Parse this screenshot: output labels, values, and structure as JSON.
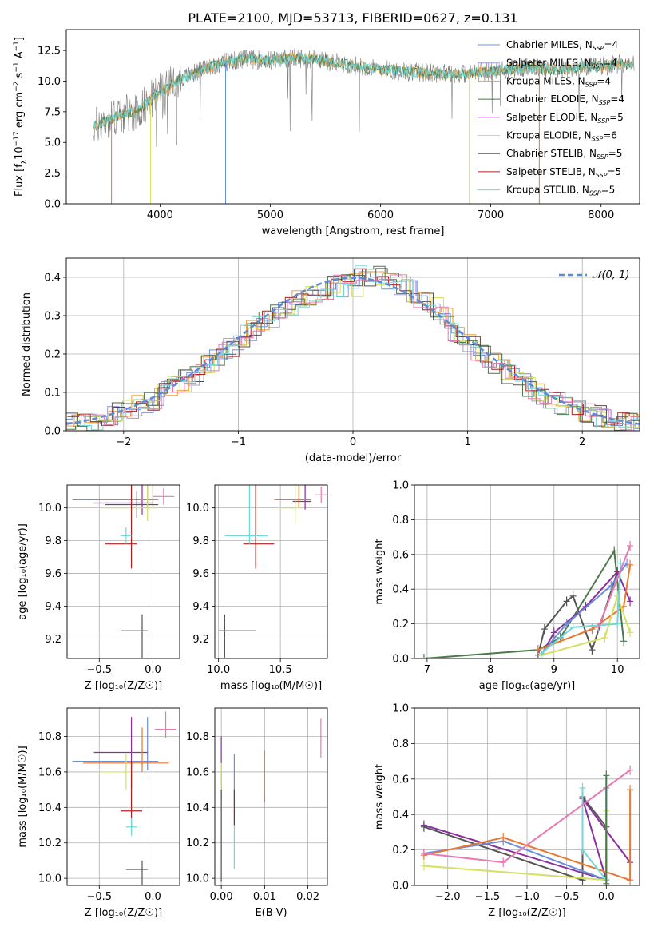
{
  "figure_title": "PLATE=2100, MJD=53713, FIBERID=0627, z=0.131",
  "legend": {
    "spectrum": [
      {
        "label": "Chabrier MILES, N",
        "sub": "SSP",
        "tail": "=4",
        "color": "#6a8fd8"
      },
      {
        "label": "Salpeter MILES, N",
        "sub": "SSP",
        "tail": "=4",
        "color": "#9b9bd8"
      },
      {
        "label": "Kroupa MILES, N",
        "sub": "SSP",
        "tail": "=4",
        "color": "#f0a03a"
      },
      {
        "label": "Chabrier ELODIE, N",
        "sub": "SSP",
        "tail": "=4",
        "color": "#4a7a4a"
      },
      {
        "label": "Salpeter ELODIE, N",
        "sub": "SSP",
        "tail": "=5",
        "color": "#8a2ea0"
      },
      {
        "label": "Kroupa ELODIE, N",
        "sub": "SSP",
        "tail": "=6",
        "color": "#d4e060"
      },
      {
        "label": "Chabrier STELIB, N",
        "sub": "SSP",
        "tail": "=5",
        "color": "#555555"
      },
      {
        "label": "Salpeter STELIB, N",
        "sub": "SSP",
        "tail": "=5",
        "color": "#b02020"
      },
      {
        "label": "Kroupa STELIB, N",
        "sub": "SSP",
        "tail": "=5",
        "color": "#70d8d8"
      }
    ],
    "histogram": "𝒩(0, 1)"
  },
  "colors": {
    "Chabrier MILES": "#6a8fd8",
    "Salpeter MILES": "#9b9bd8",
    "Kroupa MILES": "#f0a03a",
    "Chabrier ELODIE": "#4a7a4a",
    "Salpeter ELODIE": "#8a2ea0",
    "Kroupa ELODIE": "#d4e060",
    "Chabrier STELIB": "#555555",
    "Salpeter STELIB": "#b02020",
    "Kroupa STELIB": "#70d8d8",
    "extra_pink": "#e878b0",
    "extra_orange": "#e87830",
    "gaussian": "#5b8ad6",
    "grid": "#b0b0b0"
  },
  "chart_data": [
    {
      "id": "spectrum",
      "type": "line",
      "xlabel": "wavelength [Angstrom, rest frame]",
      "ylabel": "Flux [f_λ 10^-17 erg cm^-2 s^-1 A^-1]",
      "xlim": [
        3150,
        8350
      ],
      "ylim": [
        0,
        14.2
      ],
      "xticks": [
        4000,
        5000,
        6000,
        7000,
        8000
      ],
      "yticks": [
        0.0,
        2.5,
        5.0,
        7.5,
        10.0,
        12.5
      ],
      "continuum": [
        [
          3400,
          6.3
        ],
        [
          3600,
          7.1
        ],
        [
          3800,
          7.6
        ],
        [
          4000,
          9.1
        ],
        [
          4200,
          10.2
        ],
        [
          4400,
          11.0
        ],
        [
          4600,
          11.6
        ],
        [
          4800,
          11.8
        ],
        [
          5000,
          11.7
        ],
        [
          5200,
          11.9
        ],
        [
          5400,
          11.8
        ],
        [
          5600,
          11.5
        ],
        [
          5800,
          11.2
        ],
        [
          6000,
          11.0
        ],
        [
          6200,
          10.8
        ],
        [
          6400,
          10.7
        ],
        [
          6600,
          10.6
        ],
        [
          6800,
          10.6
        ],
        [
          7000,
          10.8
        ],
        [
          7200,
          11.0
        ],
        [
          7400,
          11.1
        ],
        [
          7600,
          10.9
        ],
        [
          7800,
          11.1
        ],
        [
          8000,
          11.2
        ],
        [
          8300,
          11.5
        ]
      ],
      "drops": [
        {
          "x": 3560,
          "color": "#e87830"
        },
        {
          "x": 3915,
          "color": "#d4e060"
        },
        {
          "x": 4595,
          "color": "#6a8fd8"
        },
        {
          "x": 6805,
          "color": "#d4e060"
        },
        {
          "x": 7440,
          "color": "#e87830"
        }
      ]
    },
    {
      "id": "residuals",
      "type": "histogram",
      "xlabel": "(data-model)/error",
      "ylabel": "Normed distribution",
      "xlim": [
        -2.5,
        2.5
      ],
      "ylim": [
        0,
        0.45
      ],
      "xticks": [
        -2,
        -1,
        0,
        1,
        2
      ],
      "yticks": [
        0.0,
        0.1,
        0.2,
        0.3,
        0.4
      ],
      "bin_width": 0.1,
      "gaussian": {
        "mu": 0,
        "sigma": 1
      }
    },
    {
      "id": "age_vs_Z",
      "type": "scatter",
      "xlabel": "Z [log₁₀(Z/Z☉)]",
      "ylabel": "age  [log₁₀(age/yr)]",
      "xlim": [
        -0.8,
        0.25
      ],
      "ylim": [
        9.08,
        10.14
      ],
      "xticks": [
        -0.5,
        0.0
      ],
      "yticks": [
        9.2,
        9.4,
        9.6,
        9.8,
        10.0
      ],
      "points": [
        {
          "x": -0.05,
          "y": 10.05,
          "xerr": [
            0.7,
            0.1
          ],
          "yerr": [
            0.25,
            0.05
          ],
          "color": "#6a8fd8"
        },
        {
          "x": -0.1,
          "y": 10.03,
          "xerr": [
            0.45,
            0.1
          ],
          "yerr": [
            0.2,
            0.07
          ],
          "color": "#8a2ea0"
        },
        {
          "x": 0.0,
          "y": 10.05,
          "xerr": [
            0.5,
            0.05
          ],
          "yerr": [
            0.25,
            0.05
          ],
          "color": "#e87830"
        },
        {
          "x": -0.15,
          "y": 10.02,
          "xerr": [
            0.3,
            0.2
          ],
          "yerr": [
            0.08,
            0.08
          ],
          "color": "#555555"
        },
        {
          "x": -0.05,
          "y": 10.0,
          "xerr": [
            0.45,
            0.1
          ],
          "yerr": [
            0.2,
            0.08
          ],
          "color": "#d4e060"
        },
        {
          "x": 0.1,
          "y": 10.07,
          "xerr": [
            0.1,
            0.1
          ],
          "yerr": [
            0.05,
            0.05
          ],
          "color": "#e878b0"
        },
        {
          "x": -0.2,
          "y": 9.78,
          "xerr": [
            0.25,
            0.05
          ],
          "yerr": [
            0.65,
            0.15
          ],
          "color": "#b02020"
        },
        {
          "x": -0.25,
          "y": 9.83,
          "xerr": [
            0.05,
            0.05
          ],
          "yerr": [
            0.05,
            0.05
          ],
          "color": "#70d8d8"
        },
        {
          "x": -0.1,
          "y": 9.25,
          "xerr": [
            0.2,
            0.05
          ],
          "yerr": [
            0.1,
            0.75
          ],
          "color": "#555555"
        }
      ]
    },
    {
      "id": "age_vs_mass",
      "type": "scatter",
      "xlabel": "mass [log₁₀(M/M☉)]",
      "ylabel": "",
      "xlim": [
        9.97,
        10.88
      ],
      "ylim": [
        9.08,
        10.14
      ],
      "xticks": [
        10.0,
        10.5
      ],
      "yticks": [
        9.2,
        9.4,
        9.6,
        9.8,
        10.0
      ],
      "points": [
        {
          "x": 10.65,
          "y": 10.05,
          "xerr": [
            0.15,
            0.05
          ],
          "yerr": [
            0.2,
            0.05
          ],
          "color": "#6a8fd8"
        },
        {
          "x": 10.7,
          "y": 10.04,
          "xerr": [
            0.1,
            0.05
          ],
          "yerr": [
            0.2,
            0.05
          ],
          "color": "#8a2ea0"
        },
        {
          "x": 10.65,
          "y": 10.05,
          "xerr": [
            0.2,
            0.1
          ],
          "yerr": [
            0.25,
            0.05
          ],
          "color": "#e87830"
        },
        {
          "x": 10.62,
          "y": 10.0,
          "xerr": [
            0.15,
            0.05
          ],
          "yerr": [
            0.13,
            0.1
          ],
          "color": "#d4e060"
        },
        {
          "x": 10.83,
          "y": 10.08,
          "xerr": [
            0.05,
            0.05
          ],
          "yerr": [
            0.05,
            0.05
          ],
          "color": "#e878b0"
        },
        {
          "x": 10.3,
          "y": 9.78,
          "xerr": [
            0.1,
            0.15
          ],
          "yerr": [
            0.65,
            0.15
          ],
          "color": "#b02020"
        },
        {
          "x": 10.25,
          "y": 9.83,
          "xerr": [
            0.2,
            0.15
          ],
          "yerr": [
            0.6,
            0.05
          ],
          "color": "#70d8d8"
        },
        {
          "x": 10.05,
          "y": 9.25,
          "xerr": [
            0.05,
            0.25
          ],
          "yerr": [
            0.1,
            0.82
          ],
          "color": "#555555"
        }
      ]
    },
    {
      "id": "massweight_vs_age",
      "type": "line",
      "xlabel": "age  [log₁₀(age/yr)]",
      "ylabel": "mass weight",
      "xlim": [
        6.8,
        10.35
      ],
      "ylim": [
        0,
        1.0
      ],
      "xticks": [
        7,
        8,
        9,
        10
      ],
      "yticks": [
        0.0,
        0.2,
        0.4,
        0.6,
        0.8,
        1.0
      ],
      "series": [
        {
          "color": "#4a7a4a",
          "x": [
            6.95,
            8.75,
            9.1,
            9.95,
            10.1
          ],
          "y": [
            0.0,
            0.05,
            0.12,
            0.62,
            0.1
          ]
        },
        {
          "color": "#555555",
          "x": [
            8.75,
            8.85,
            9.2,
            9.3,
            9.6,
            10.0
          ],
          "y": [
            0.02,
            0.17,
            0.33,
            0.36,
            0.05,
            0.5
          ]
        },
        {
          "color": "#8a2ea0",
          "x": [
            8.8,
            9.0,
            9.5,
            10.0,
            10.2
          ],
          "y": [
            0.02,
            0.15,
            0.3,
            0.5,
            0.33
          ]
        },
        {
          "color": "#6a8fd8",
          "x": [
            8.8,
            9.2,
            9.9,
            10.15
          ],
          "y": [
            0.03,
            0.2,
            0.42,
            0.55
          ]
        },
        {
          "color": "#e87830",
          "x": [
            8.75,
            9.6,
            10.1,
            10.2
          ],
          "y": [
            0.05,
            0.17,
            0.3,
            0.54
          ]
        },
        {
          "color": "#d4e060",
          "x": [
            8.8,
            9.8,
            10.0,
            10.2
          ],
          "y": [
            0.02,
            0.12,
            0.36,
            0.15
          ]
        },
        {
          "color": "#70d8d8",
          "x": [
            8.8,
            9.3,
            10.0,
            10.05
          ],
          "y": [
            0.03,
            0.18,
            0.2,
            0.55
          ]
        },
        {
          "color": "#e878b0",
          "x": [
            9.7,
            10.2
          ],
          "y": [
            0.18,
            0.65
          ]
        }
      ]
    },
    {
      "id": "mass_vs_Z",
      "type": "scatter",
      "xlabel": "Z [log₁₀(Z/Z☉)]",
      "ylabel": "mass [log₁₀(M/M☉)]",
      "xlim": [
        -0.8,
        0.25
      ],
      "ylim": [
        9.96,
        10.96
      ],
      "xticks": [
        -0.5,
        0.0
      ],
      "yticks": [
        10.0,
        10.2,
        10.4,
        10.6,
        10.8
      ],
      "points": [
        {
          "x": -0.05,
          "y": 10.66,
          "xerr": [
            0.7,
            0.1
          ],
          "yerr": [
            0.25,
            0.05
          ],
          "color": "#6a8fd8"
        },
        {
          "x": -0.2,
          "y": 10.71,
          "xerr": [
            0.35,
            0.15
          ],
          "yerr": [
            0.2,
            0.2
          ],
          "color": "#8a2ea0"
        },
        {
          "x": -0.1,
          "y": 10.65,
          "xerr": [
            0.55,
            0.25
          ],
          "yerr": [
            0.2,
            0.05
          ],
          "color": "#e87830"
        },
        {
          "x": -0.25,
          "y": 10.6,
          "xerr": [
            0.25,
            0.05
          ],
          "yerr": [
            0.1,
            0.1
          ],
          "color": "#d4e060"
        },
        {
          "x": 0.12,
          "y": 10.84,
          "xerr": [
            0.1,
            0.1
          ],
          "yerr": [
            0.1,
            0.05
          ],
          "color": "#e878b0"
        },
        {
          "x": -0.2,
          "y": 10.38,
          "xerr": [
            0.1,
            0.1
          ],
          "yerr": [
            0.28,
            0.12
          ],
          "color": "#b02020"
        },
        {
          "x": -0.2,
          "y": 10.29,
          "xerr": [
            0.05,
            0.05
          ],
          "yerr": [
            0.05,
            0.05
          ],
          "color": "#70d8d8"
        },
        {
          "x": -0.1,
          "y": 10.05,
          "xerr": [
            0.15,
            0.05
          ],
          "yerr": [
            0.05,
            0.55
          ],
          "color": "#555555"
        }
      ]
    },
    {
      "id": "mass_vs_ebv",
      "type": "scatter",
      "xlabel": "E(B-V)",
      "ylabel": "",
      "xlim": [
        -0.0015,
        0.0245
      ],
      "ylim": [
        9.96,
        10.96
      ],
      "xticks": [
        0.0,
        0.01,
        0.02
      ],
      "yticks": [
        10.0,
        10.2,
        10.4,
        10.6,
        10.8
      ],
      "bars": [
        {
          "x": 0.0,
          "y0": 10.45,
          "y1": 10.8,
          "color": "#8a2ea0"
        },
        {
          "x": 0.0,
          "y0": 10.1,
          "y1": 10.65,
          "color": "#d4e060"
        },
        {
          "x": 0.003,
          "y0": 10.4,
          "y1": 10.7,
          "color": "#6a8fd8"
        },
        {
          "x": 0.003,
          "y0": 10.05,
          "y1": 10.5,
          "color": "#70d8d8"
        },
        {
          "x": 0.01,
          "y0": 10.43,
          "y1": 10.72,
          "color": "#e87830"
        },
        {
          "x": 0.023,
          "y0": 10.68,
          "y1": 10.9,
          "color": "#e878b0"
        },
        {
          "x": 0.0,
          "y0": 9.98,
          "y1": 10.5,
          "color": "#555555"
        },
        {
          "x": 0.003,
          "y0": 10.3,
          "y1": 10.5,
          "color": "#b02020"
        }
      ]
    },
    {
      "id": "massweight_vs_Z",
      "type": "line",
      "xlabel": "Z [log₁₀(Z/Z☉)]",
      "ylabel": "mass weight",
      "xlim": [
        -2.42,
        0.42
      ],
      "ylim": [
        0,
        1.0
      ],
      "xticks": [
        -2.0,
        -1.5,
        -1.0,
        -0.5,
        0.0
      ],
      "yticks": [
        0.0,
        0.2,
        0.4,
        0.6,
        0.8,
        1.0
      ],
      "series": [
        {
          "color": "#8a2ea0",
          "x": [
            -2.3,
            0.0,
            -0.3,
            0.3
          ],
          "y": [
            0.34,
            0.03,
            0.49,
            0.13
          ]
        },
        {
          "color": "#555555",
          "x": [
            -2.3,
            -0.3,
            -0.3,
            0.0,
            0.0
          ],
          "y": [
            0.33,
            0.03,
            0.5,
            0.33,
            0.03
          ]
        },
        {
          "color": "#6a8fd8",
          "x": [
            -2.3,
            -1.3,
            0.0,
            0.0
          ],
          "y": [
            0.18,
            0.25,
            0.03,
            0.55
          ]
        },
        {
          "color": "#e87830",
          "x": [
            -2.3,
            -1.3,
            0.3,
            0.3
          ],
          "y": [
            0.17,
            0.27,
            0.03,
            0.54
          ]
        },
        {
          "color": "#d4e060",
          "x": [
            -2.3,
            0.0,
            0.0
          ],
          "y": [
            0.11,
            0.03,
            0.42
          ]
        },
        {
          "color": "#70d8d8",
          "x": [
            -0.3,
            -0.3,
            0.0
          ],
          "y": [
            0.55,
            0.2,
            0.03
          ]
        },
        {
          "color": "#e878b0",
          "x": [
            -2.3,
            -1.3,
            0.3
          ],
          "y": [
            0.18,
            0.13,
            0.65
          ]
        },
        {
          "color": "#4a7a4a",
          "x": [
            0.0,
            0.0
          ],
          "y": [
            0.62,
            0.01
          ]
        }
      ]
    }
  ]
}
